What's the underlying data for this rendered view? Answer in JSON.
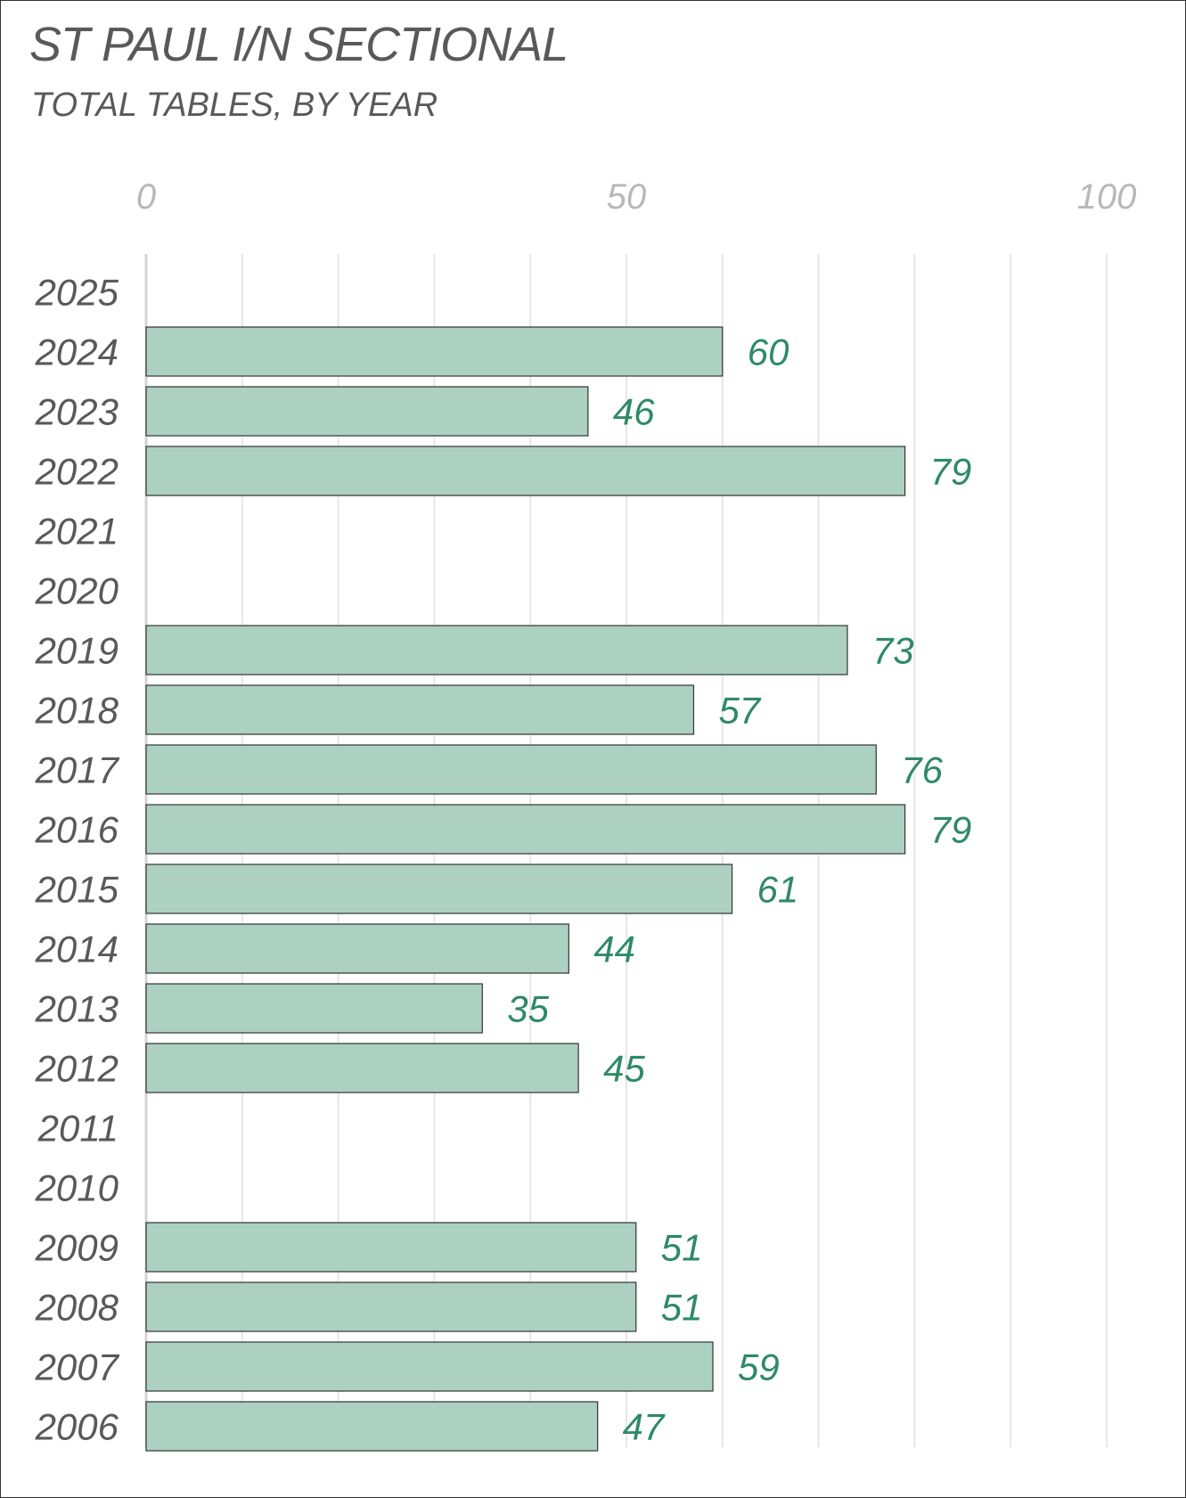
{
  "chart_data": {
    "type": "bar",
    "orientation": "horizontal",
    "title": "ST PAUL I/N SECTIONAL",
    "subtitle": "TOTAL TABLES, BY YEAR",
    "xlabel": "",
    "ylabel": "",
    "xlim": [
      0,
      100
    ],
    "x_ticks": [
      0,
      50,
      100
    ],
    "x_tick_labels": [
      "0",
      "50",
      "100"
    ],
    "gridline_step": 10,
    "grid": true,
    "axis_position": "top",
    "bar_color": "#acd0c2",
    "bar_edge_color": "#333333",
    "label_color": "#2e8a66",
    "categories": [
      "2025",
      "2024",
      "2023",
      "2022",
      "2021",
      "2020",
      "2019",
      "2018",
      "2017",
      "2016",
      "2015",
      "2014",
      "2013",
      "2012",
      "2011",
      "2010",
      "2009",
      "2008",
      "2007",
      "2006"
    ],
    "values": [
      null,
      60,
      46,
      79,
      null,
      null,
      73,
      57,
      76,
      79,
      61,
      44,
      35,
      45,
      null,
      null,
      51,
      51,
      59,
      47
    ]
  }
}
